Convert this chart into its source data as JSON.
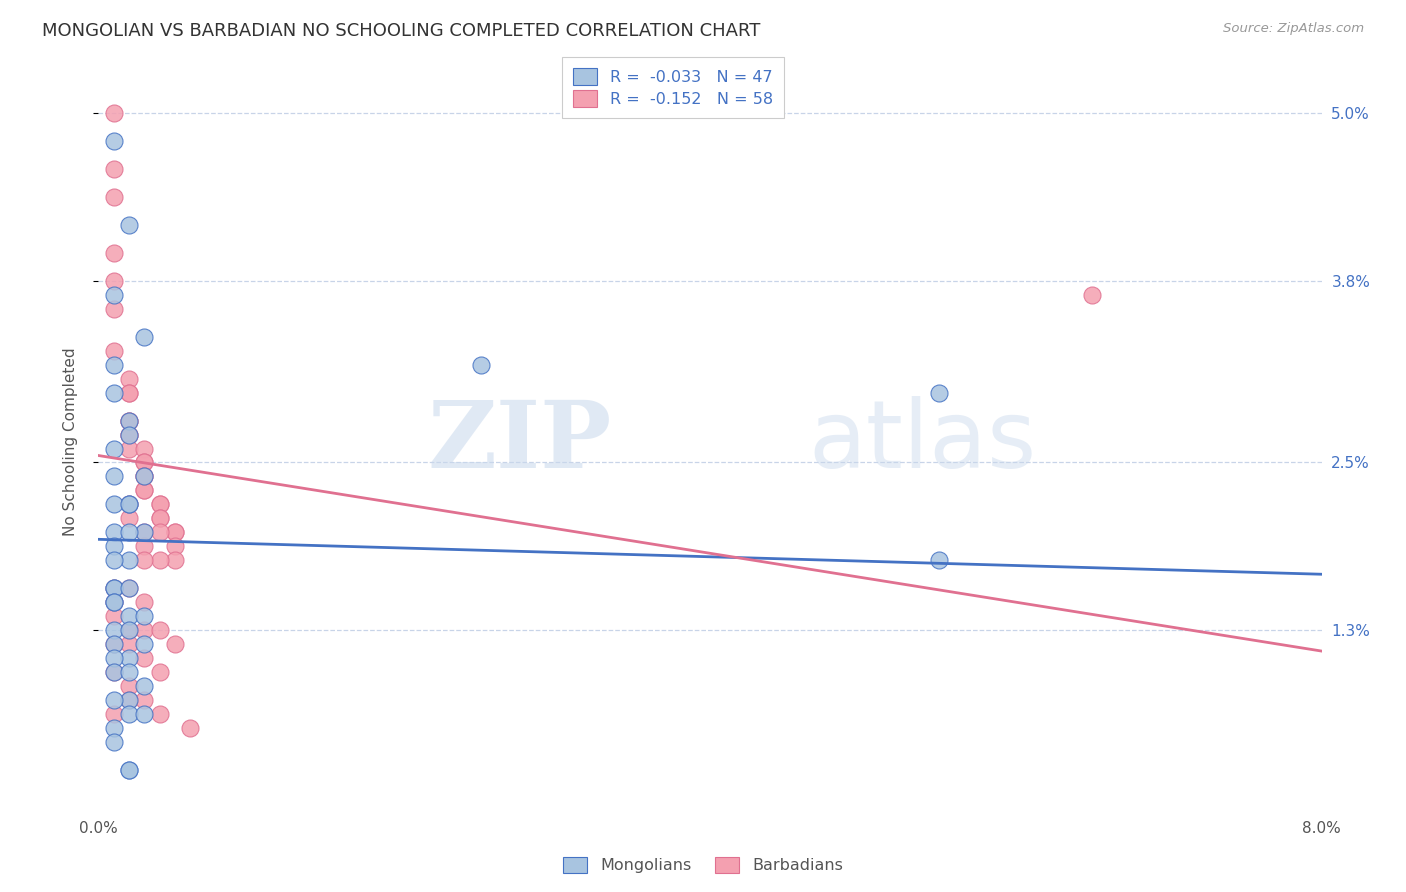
{
  "title": "MONGOLIAN VS BARBADIAN NO SCHOOLING COMPLETED CORRELATION CHART",
  "source": "Source: ZipAtlas.com",
  "ylabel": "No Schooling Completed",
  "x_min": 0.0,
  "x_max": 0.08,
  "y_min": 0.0,
  "y_max": 0.053,
  "x_tick_positions": [
    0.0,
    0.01,
    0.02,
    0.03,
    0.04,
    0.05,
    0.06,
    0.07,
    0.08
  ],
  "x_tick_labels": [
    "0.0%",
    "",
    "",
    "",
    "",
    "",
    "",
    "",
    "8.0%"
  ],
  "y_ticks_right": [
    0.013,
    0.025,
    0.038,
    0.05
  ],
  "y_tick_labels_right": [
    "1.3%",
    "2.5%",
    "3.8%",
    "5.0%"
  ],
  "mongolian_color": "#a8c4e0",
  "barbadian_color": "#f4a0b0",
  "mongolian_line_color": "#4472c4",
  "barbadian_line_color": "#e07090",
  "mongolian_R": -0.033,
  "mongolian_N": 47,
  "barbadian_R": -0.152,
  "barbadian_N": 58,
  "legend_label_mongolian": "Mongolians",
  "legend_label_barbadian": "Barbadians",
  "watermark_zip": "ZIP",
  "watermark_atlas": "atlas",
  "background_color": "#ffffff",
  "grid_color": "#c8d4e8",
  "title_fontsize": 13,
  "axis_label_fontsize": 11,
  "tick_fontsize": 11,
  "mongolian_x": [
    0.001,
    0.002,
    0.001,
    0.003,
    0.001,
    0.001,
    0.002,
    0.001,
    0.002,
    0.003,
    0.001,
    0.002,
    0.001,
    0.002,
    0.001,
    0.003,
    0.002,
    0.001,
    0.002,
    0.001,
    0.001,
    0.001,
    0.002,
    0.001,
    0.001,
    0.002,
    0.003,
    0.001,
    0.002,
    0.001,
    0.003,
    0.002,
    0.001,
    0.001,
    0.002,
    0.003,
    0.002,
    0.001,
    0.002,
    0.003,
    0.001,
    0.001,
    0.055,
    0.055,
    0.025,
    0.002,
    0.002
  ],
  "mongolian_y": [
    0.048,
    0.042,
    0.037,
    0.034,
    0.032,
    0.03,
    0.028,
    0.026,
    0.027,
    0.024,
    0.024,
    0.022,
    0.022,
    0.022,
    0.02,
    0.02,
    0.02,
    0.019,
    0.018,
    0.018,
    0.016,
    0.016,
    0.016,
    0.015,
    0.015,
    0.014,
    0.014,
    0.013,
    0.013,
    0.012,
    0.012,
    0.011,
    0.011,
    0.01,
    0.01,
    0.009,
    0.008,
    0.008,
    0.007,
    0.007,
    0.006,
    0.005,
    0.03,
    0.018,
    0.032,
    0.003,
    0.003
  ],
  "barbadian_x": [
    0.001,
    0.001,
    0.001,
    0.001,
    0.001,
    0.001,
    0.001,
    0.002,
    0.002,
    0.002,
    0.002,
    0.002,
    0.002,
    0.002,
    0.002,
    0.003,
    0.003,
    0.003,
    0.003,
    0.003,
    0.003,
    0.004,
    0.004,
    0.004,
    0.004,
    0.005,
    0.005,
    0.005,
    0.005,
    0.002,
    0.002,
    0.003,
    0.003,
    0.004,
    0.001,
    0.001,
    0.002,
    0.003,
    0.004,
    0.001,
    0.002,
    0.003,
    0.001,
    0.002,
    0.003,
    0.004,
    0.001,
    0.002,
    0.065,
    0.003,
    0.004,
    0.005,
    0.002,
    0.003,
    0.004,
    0.001,
    0.006,
    0.003
  ],
  "barbadian_y": [
    0.05,
    0.046,
    0.044,
    0.04,
    0.038,
    0.036,
    0.033,
    0.031,
    0.03,
    0.03,
    0.028,
    0.028,
    0.027,
    0.027,
    0.026,
    0.026,
    0.025,
    0.025,
    0.024,
    0.023,
    0.023,
    0.022,
    0.022,
    0.021,
    0.021,
    0.02,
    0.02,
    0.019,
    0.018,
    0.022,
    0.021,
    0.02,
    0.019,
    0.018,
    0.016,
    0.015,
    0.016,
    0.015,
    0.02,
    0.014,
    0.013,
    0.013,
    0.012,
    0.012,
    0.011,
    0.01,
    0.01,
    0.009,
    0.037,
    0.018,
    0.013,
    0.012,
    0.008,
    0.008,
    0.007,
    0.007,
    0.006,
    0.024
  ]
}
